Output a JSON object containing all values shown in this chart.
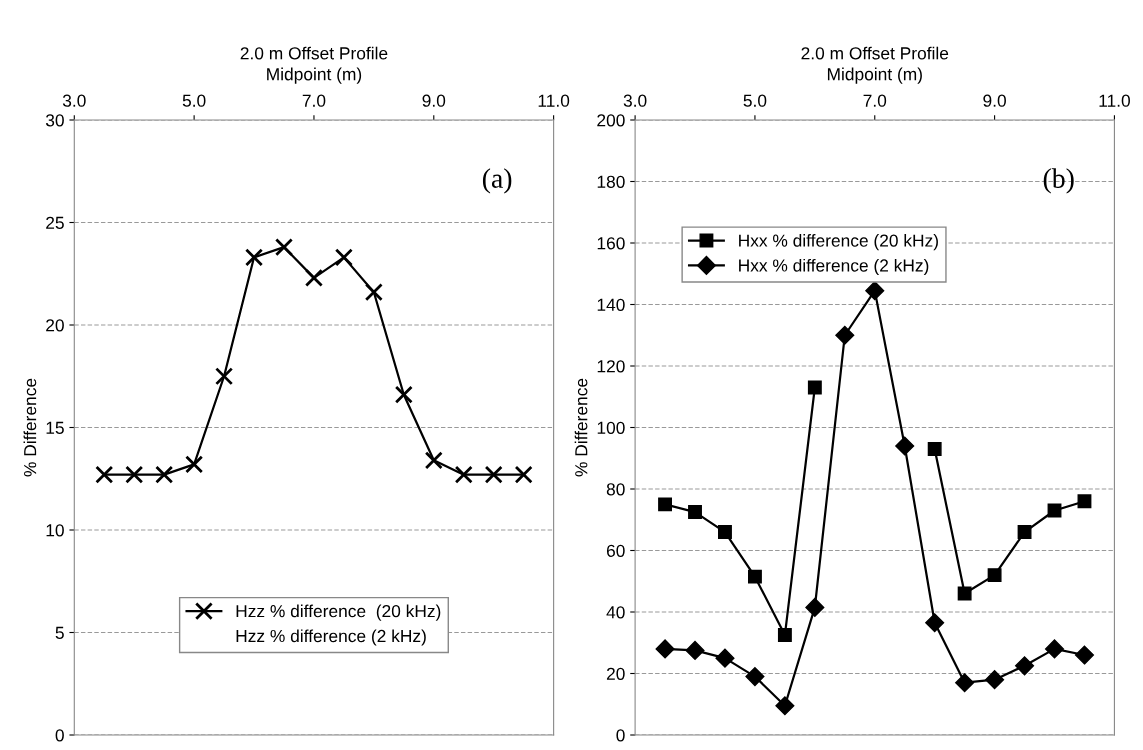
{
  "chart_data": [
    {
      "type": "line",
      "title": "2.0 m Offset Profile",
      "xlabel": "Midpoint (m)",
      "ylabel": "% Difference",
      "x": [
        3.5,
        4.0,
        4.5,
        5.0,
        5.5,
        6.0,
        6.5,
        7.0,
        7.5,
        8.0,
        8.5,
        9.0,
        9.5,
        10.0,
        10.5
      ],
      "series": [
        {
          "name": "Hzz % difference  (20 kHz)",
          "color": "#000000",
          "marker": "cross",
          "values": [
            12.7,
            12.7,
            12.7,
            13.2,
            17.5,
            23.3,
            23.8,
            22.3,
            23.3,
            21.6,
            16.6,
            13.4,
            12.7,
            12.7,
            12.7
          ]
        },
        {
          "name": "Hzz % difference (2 kHz)",
          "marker": "none",
          "values": [
            null,
            null,
            null,
            null,
            null,
            null,
            null,
            null,
            null,
            null,
            null,
            null,
            null,
            null,
            null
          ]
        }
      ],
      "xlim": [
        3,
        11
      ],
      "xticks": [
        {
          "value": 3,
          "label": "3.0"
        },
        {
          "value": 5,
          "label": "5.0"
        },
        {
          "value": 7,
          "label": "7.0"
        },
        {
          "value": 9,
          "label": "9.0"
        },
        {
          "value": 11,
          "label": "11.0"
        }
      ],
      "ylim": [
        0,
        30
      ],
      "yticks": [
        0,
        5,
        10,
        15,
        20,
        25,
        30
      ],
      "grid": "y",
      "legend": "bottom",
      "line_style": "solid",
      "annotations": [
        "(a)"
      ]
    },
    {
      "type": "line",
      "title": "2.0 m Offset Profile",
      "xlabel": "Midpoint (m)",
      "ylabel": "% Difference",
      "x": [
        3.5,
        4.0,
        4.5,
        5.0,
        5.5,
        6.0,
        6.5,
        7.0,
        7.5,
        8.0,
        8.5,
        9.0,
        9.5,
        10.0,
        10.5
      ],
      "series": [
        {
          "name": "Hxx % difference (20 kHz)",
          "color": "#000000",
          "marker": "square",
          "values": [
            75,
            72.5,
            66,
            51.5,
            32.5,
            113,
            null,
            null,
            null,
            93,
            46,
            52,
            66,
            73,
            76
          ]
        },
        {
          "name": "Hxx % difference (2 kHz)",
          "color": "#000000",
          "marker": "diamond",
          "values": [
            28,
            27.5,
            25,
            19,
            9.5,
            41.5,
            130,
            144.5,
            94,
            36.5,
            17,
            18,
            22.5,
            28,
            26
          ]
        }
      ],
      "xlim": [
        3,
        11
      ],
      "xticks": [
        {
          "value": 3,
          "label": "3.0"
        },
        {
          "value": 5,
          "label": "5.0"
        },
        {
          "value": 7,
          "label": "7.0"
        },
        {
          "value": 9,
          "label": "9.0"
        },
        {
          "value": 11,
          "label": "11.0"
        }
      ],
      "ylim": [
        0,
        200
      ],
      "yticks": [
        0,
        20,
        40,
        60,
        80,
        100,
        120,
        140,
        160,
        180,
        200
      ],
      "grid": "y",
      "legend": "top left",
      "line_style": "solid",
      "annotations": [
        "(b)"
      ]
    }
  ]
}
